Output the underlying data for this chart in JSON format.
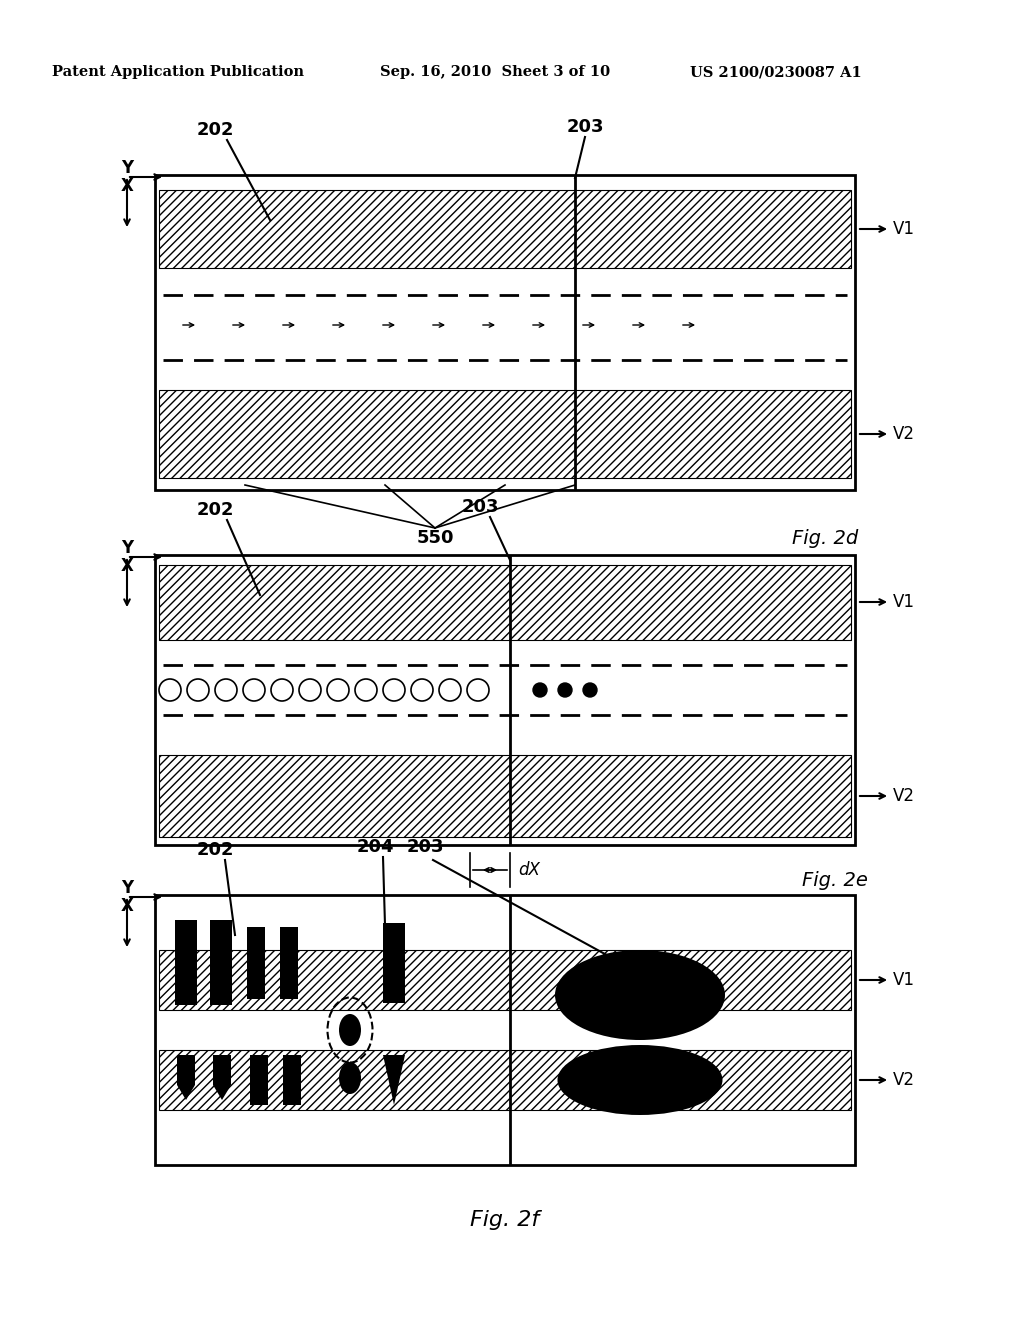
{
  "header_left": "Patent Application Publication",
  "header_mid": "Sep. 16, 2010  Sheet 3 of 10",
  "header_right": "US 2100/0230087 A1",
  "fig2d_label": "Fig. 2d",
  "fig2e_label": "Fig. 2e",
  "fig2f_label": "Fig. 2f",
  "bg_color": "#ffffff"
}
